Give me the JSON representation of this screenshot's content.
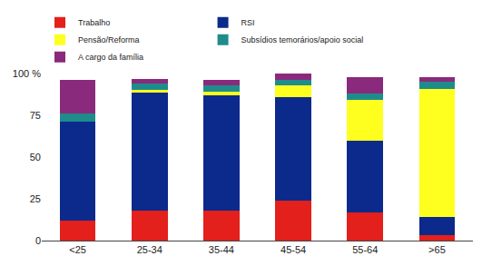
{
  "chart_data": {
    "type": "bar",
    "stacked": true,
    "legend": "top",
    "grid": false,
    "categories": [
      "<25",
      "25-34",
      "35-44",
      "45-54",
      "55-64",
      ">65"
    ],
    "series": [
      {
        "name": "Trabalho",
        "color": "#e3201b",
        "values": [
          12,
          18,
          18,
          24,
          17,
          3
        ]
      },
      {
        "name": "RSI",
        "color": "#0c2a8c",
        "values": [
          59,
          71,
          69,
          62,
          43,
          11
        ]
      },
      {
        "name": "Pensão/Reforma",
        "color": "#ffff1f",
        "values": [
          0,
          1,
          2,
          7,
          24,
          77
        ]
      },
      {
        "name": "Subsídios temorários/apoio social",
        "color": "#1f8c8c",
        "values": [
          5,
          4,
          4,
          3,
          4,
          4
        ]
      },
      {
        "name": "A cargo da família",
        "color": "#8a2a7c",
        "values": [
          20,
          3,
          3,
          4,
          10,
          3
        ]
      }
    ],
    "ylim": [
      0,
      100
    ],
    "yticks": [
      0,
      25,
      50,
      75,
      {
        "value": 100,
        "label": "100 %"
      }
    ]
  }
}
